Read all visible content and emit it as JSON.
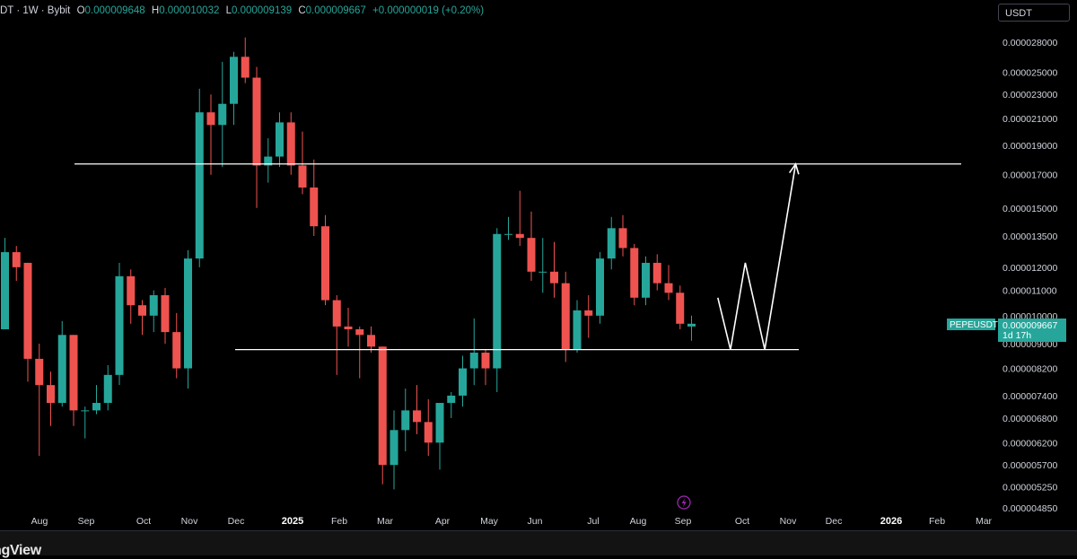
{
  "legend": {
    "symbol": "DT · 1W · Bybit",
    "open_label": "O",
    "open": "0.000009648",
    "high_label": "H",
    "high": "0.000010032",
    "low_label": "L",
    "low": "0.000009139",
    "close_label": "C",
    "close": "0.000009667",
    "change": "+0.000000019 (+0.20%)"
  },
  "currency_button": "USDT",
  "price_tag": {
    "symbol": "PEPEUSDT",
    "price": "0.000009667",
    "countdown": "1d 17h"
  },
  "brand": "ngView",
  "event_icon": "lightning-icon",
  "colors": {
    "up": "#26a69a",
    "down": "#ef5350",
    "background": "#000000",
    "annotation": "#ffffff"
  },
  "chart_data": {
    "type": "candlestick",
    "timeframe": "1W",
    "y_scale": "log",
    "y_ticks": [
      "0.000028000",
      "0.000025000",
      "0.000023000",
      "0.000021000",
      "0.000019000",
      "0.000017000",
      "0.000015000",
      "0.000013500",
      "0.000012000",
      "0.000011000",
      "0.000010000",
      "0.000009000",
      "0.000008200",
      "0.000007400",
      "0.000006800",
      "0.000006200",
      "0.000005700",
      "0.000005250",
      "0.000004850"
    ],
    "x_ticks": [
      "Aug",
      "Sep",
      "Oct",
      "Nov",
      "Dec",
      "2025",
      "Feb",
      "Mar",
      "Apr",
      "May",
      "Jun",
      "Jul",
      "Aug",
      "Sep",
      "Oct",
      "Nov",
      "Dec",
      "2026",
      "Feb",
      "Mar"
    ],
    "x_tick_bold": [
      "2025",
      "2026"
    ],
    "resistance_level": 1.77e-05,
    "support_level": 8.8e-06,
    "candles": [
      {
        "o": 9.5e-06,
        "h": 1.34e-05,
        "l": 9.5e-06,
        "c": 1.27e-05
      },
      {
        "o": 1.27e-05,
        "h": 1.3e-05,
        "l": 1.14e-05,
        "c": 1.2e-05
      },
      {
        "o": 1.22e-05,
        "h": 1.22e-05,
        "l": 7.8e-06,
        "c": 8.5e-06
      },
      {
        "o": 8.5e-06,
        "h": 9e-06,
        "l": 5.9e-06,
        "c": 7.7e-06
      },
      {
        "o": 7.7e-06,
        "h": 8.1e-06,
        "l": 6.6e-06,
        "c": 7.2e-06
      },
      {
        "o": 7.2e-06,
        "h": 9.8e-06,
        "l": 7.1e-06,
        "c": 9.3e-06
      },
      {
        "o": 9.3e-06,
        "h": 9.3e-06,
        "l": 6.6e-06,
        "c": 7e-06
      },
      {
        "o": 7e-06,
        "h": 7.1e-06,
        "l": 6.3e-06,
        "c": 7e-06
      },
      {
        "o": 7e-06,
        "h": 7.7e-06,
        "l": 6.9e-06,
        "c": 7.2e-06
      },
      {
        "o": 7.2e-06,
        "h": 8.3e-06,
        "l": 7e-06,
        "c": 8e-06
      },
      {
        "o": 8e-06,
        "h": 1.22e-05,
        "l": 7.7e-06,
        "c": 1.16e-05
      },
      {
        "o": 1.16e-05,
        "h": 1.19e-05,
        "l": 9.7e-06,
        "c": 1.04e-05
      },
      {
        "o": 1.04e-05,
        "h": 1.06e-05,
        "l": 9.3e-06,
        "c": 1e-05
      },
      {
        "o": 1e-05,
        "h": 1.1e-05,
        "l": 9.4e-06,
        "c": 1.08e-05
      },
      {
        "o": 1.08e-05,
        "h": 1.11e-05,
        "l": 9e-06,
        "c": 9.4e-06
      },
      {
        "o": 9.4e-06,
        "h": 1.01e-05,
        "l": 7.9e-06,
        "c": 8.2e-06
      },
      {
        "o": 8.2e-06,
        "h": 1.28e-05,
        "l": 7.6e-06,
        "c": 1.24e-05
      },
      {
        "o": 1.24e-05,
        "h": 2.35e-05,
        "l": 1.2e-05,
        "c": 2.15e-05
      },
      {
        "o": 2.15e-05,
        "h": 2.3e-05,
        "l": 1.7e-05,
        "c": 2.05e-05
      },
      {
        "o": 2.05e-05,
        "h": 2.6e-05,
        "l": 1.75e-05,
        "c": 2.22e-05
      },
      {
        "o": 2.22e-05,
        "h": 2.7e-05,
        "l": 2.05e-05,
        "c": 2.65e-05
      },
      {
        "o": 2.65e-05,
        "h": 2.85e-05,
        "l": 2.4e-05,
        "c": 2.45e-05
      },
      {
        "o": 2.45e-05,
        "h": 2.55e-05,
        "l": 1.5e-05,
        "c": 1.76e-05
      },
      {
        "o": 1.76e-05,
        "h": 1.95e-05,
        "l": 1.65e-05,
        "c": 1.82e-05
      },
      {
        "o": 1.82e-05,
        "h": 2.15e-05,
        "l": 1.75e-05,
        "c": 2.07e-05
      },
      {
        "o": 2.07e-05,
        "h": 2.15e-05,
        "l": 1.7e-05,
        "c": 1.76e-05
      },
      {
        "o": 1.76e-05,
        "h": 2e-05,
        "l": 1.58e-05,
        "c": 1.62e-05
      },
      {
        "o": 1.62e-05,
        "h": 1.8e-05,
        "l": 1.35e-05,
        "c": 1.4e-05
      },
      {
        "o": 1.4e-05,
        "h": 1.46e-05,
        "l": 1.04e-05,
        "c": 1.06e-05
      },
      {
        "o": 1.06e-05,
        "h": 1.08e-05,
        "l": 8e-06,
        "c": 9.6e-06
      },
      {
        "o": 9.6e-06,
        "h": 1.03e-05,
        "l": 8.9e-06,
        "c": 9.5e-06
      },
      {
        "o": 9.5e-06,
        "h": 9.6e-06,
        "l": 7.9e-06,
        "c": 9.3e-06
      },
      {
        "o": 9.3e-06,
        "h": 9.6e-06,
        "l": 8.7e-06,
        "c": 8.9e-06
      },
      {
        "o": 8.9e-06,
        "h": 8.9e-06,
        "l": 5.3e-06,
        "c": 5.7e-06
      },
      {
        "o": 5.7e-06,
        "h": 7e-06,
        "l": 5.2e-06,
        "c": 6.5e-06
      },
      {
        "o": 6.5e-06,
        "h": 7.6e-06,
        "l": 6e-06,
        "c": 7e-06
      },
      {
        "o": 7e-06,
        "h": 7.7e-06,
        "l": 6.4e-06,
        "c": 6.7e-06
      },
      {
        "o": 6.7e-06,
        "h": 7.3e-06,
        "l": 5.9e-06,
        "c": 6.2e-06
      },
      {
        "o": 6.2e-06,
        "h": 7e-06,
        "l": 5.6e-06,
        "c": 7.2e-06
      },
      {
        "o": 7.2e-06,
        "h": 7.5e-06,
        "l": 6.8e-06,
        "c": 7.4e-06
      },
      {
        "o": 7.4e-06,
        "h": 8.6e-06,
        "l": 7.1e-06,
        "c": 8.2e-06
      },
      {
        "o": 8.2e-06,
        "h": 9.9e-06,
        "l": 7.7e-06,
        "c": 8.7e-06
      },
      {
        "o": 8.7e-06,
        "h": 8.8e-06,
        "l": 7.7e-06,
        "c": 8.2e-06
      },
      {
        "o": 8.2e-06,
        "h": 1.39e-05,
        "l": 7.5e-06,
        "c": 1.36e-05
      },
      {
        "o": 1.36e-05,
        "h": 1.45e-05,
        "l": 1.33e-05,
        "c": 1.36e-05
      },
      {
        "o": 1.36e-05,
        "h": 1.6e-05,
        "l": 1.3e-05,
        "c": 1.34e-05
      },
      {
        "o": 1.34e-05,
        "h": 1.48e-05,
        "l": 1.14e-05,
        "c": 1.18e-05
      },
      {
        "o": 1.18e-05,
        "h": 1.34e-05,
        "l": 1.09e-05,
        "c": 1.18e-05
      },
      {
        "o": 1.18e-05,
        "h": 1.32e-05,
        "l": 1.07e-05,
        "c": 1.13e-05
      },
      {
        "o": 1.13e-05,
        "h": 1.18e-05,
        "l": 8.4e-06,
        "c": 8.8e-06
      },
      {
        "o": 8.8e-06,
        "h": 1.06e-05,
        "l": 8.7e-06,
        "c": 1.02e-05
      },
      {
        "o": 1.02e-05,
        "h": 1.08e-05,
        "l": 9.2e-06,
        "c": 1e-05
      },
      {
        "o": 1e-05,
        "h": 1.27e-05,
        "l": 9.7e-06,
        "c": 1.24e-05
      },
      {
        "o": 1.24e-05,
        "h": 1.45e-05,
        "l": 1.19e-05,
        "c": 1.39e-05
      },
      {
        "o": 1.39e-05,
        "h": 1.46e-05,
        "l": 1.25e-05,
        "c": 1.29e-05
      },
      {
        "o": 1.29e-05,
        "h": 1.31e-05,
        "l": 1.04e-05,
        "c": 1.07e-05
      },
      {
        "o": 1.07e-05,
        "h": 1.25e-05,
        "l": 1.04e-05,
        "c": 1.22e-05
      },
      {
        "o": 1.22e-05,
        "h": 1.26e-05,
        "l": 1.1e-05,
        "c": 1.13e-05
      },
      {
        "o": 1.13e-05,
        "h": 1.21e-05,
        "l": 1.06e-05,
        "c": 1.09e-05
      },
      {
        "o": 1.09e-05,
        "h": 1.12e-05,
        "l": 9.5e-06,
        "c": 9.7e-06
      },
      {
        "o": 9.6e-06,
        "h": 1e-05,
        "l": 9.1e-06,
        "c": 9.7e-06
      }
    ],
    "projection_path": [
      {
        "week": 62.3,
        "price": 1.07e-05
      },
      {
        "week": 63.4,
        "price": 8.8e-06
      },
      {
        "week": 64.7,
        "price": 1.22e-05
      },
      {
        "week": 66.4,
        "price": 8.8e-06
      },
      {
        "week": 69.1,
        "price": 1.77e-05
      }
    ]
  }
}
